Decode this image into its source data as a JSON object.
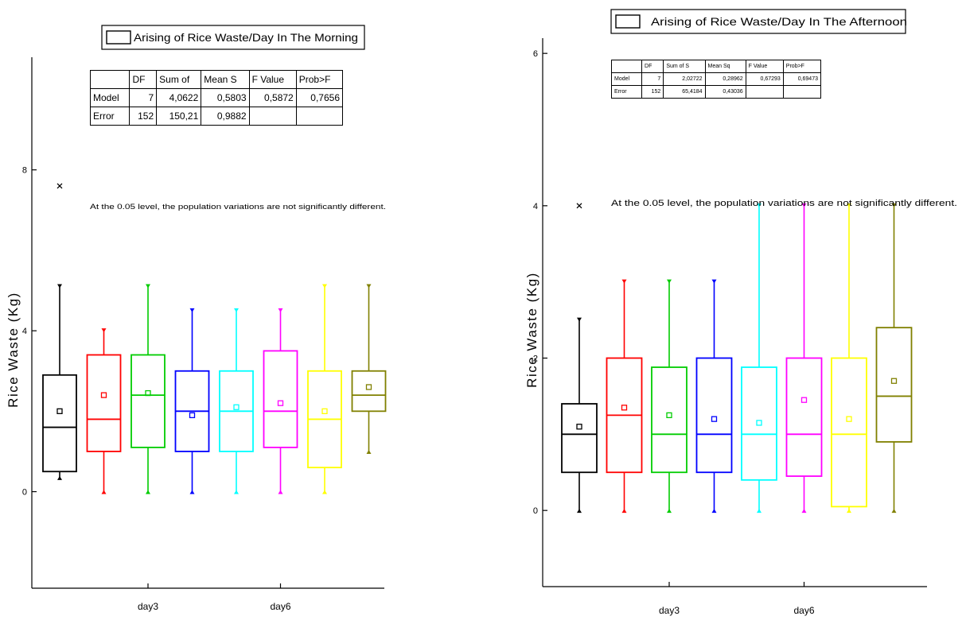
{
  "chart_data": [
    {
      "type": "box",
      "ylabel": "Rice Waste (Kg)",
      "legend": "Arising of Rice Waste/Day In The Morning",
      "note": "At the 0.05 level, the population variations are not significantly different.",
      "y_ticks": [
        0,
        4,
        8
      ],
      "ylim": [
        -2.4,
        10.8
      ],
      "categories": [
        "",
        "",
        "day3",
        "",
        "",
        "day6",
        "",
        ""
      ],
      "colors": [
        "#000000",
        "#ff0000",
        "#00cc00",
        "#0000ff",
        "#00ffff",
        "#ff00ff",
        "#ffff00",
        "#808000"
      ],
      "series": [
        {
          "min": 0.35,
          "q1": 0.5,
          "median": 1.6,
          "q3": 2.9,
          "max": 5.1,
          "mean": 2.0,
          "outliers": [
            7.6
          ]
        },
        {
          "min": 0.0,
          "q1": 1.0,
          "median": 1.8,
          "q3": 3.4,
          "max": 4.0,
          "mean": 2.4,
          "outliers": []
        },
        {
          "min": 0.0,
          "q1": 1.1,
          "median": 2.4,
          "q3": 3.4,
          "max": 5.1,
          "mean": 2.45,
          "outliers": []
        },
        {
          "min": 0.0,
          "q1": 1.0,
          "median": 2.0,
          "q3": 3.0,
          "max": 4.5,
          "mean": 1.9,
          "outliers": []
        },
        {
          "min": 0.0,
          "q1": 1.0,
          "median": 2.0,
          "q3": 3.0,
          "max": 4.5,
          "mean": 2.1,
          "outliers": []
        },
        {
          "min": 0.0,
          "q1": 1.1,
          "median": 2.0,
          "q3": 3.5,
          "max": 4.5,
          "mean": 2.2,
          "outliers": []
        },
        {
          "min": 0.0,
          "q1": 0.6,
          "median": 1.8,
          "q3": 3.0,
          "max": 5.1,
          "mean": 2.0,
          "outliers": []
        },
        {
          "min": 1.0,
          "q1": 2.0,
          "median": 2.4,
          "q3": 3.0,
          "max": 5.1,
          "mean": 2.6,
          "outliers": []
        }
      ],
      "anova": {
        "columns": [
          "",
          "DF",
          "Sum of",
          "Mean S",
          "F Value",
          "Prob>F"
        ],
        "rows": [
          [
            "Model",
            "7",
            "4,0622",
            "0,5803",
            "0,5872",
            "0,7656"
          ],
          [
            "Error",
            "152",
            "150,21",
            "0,9882",
            "",
            ""
          ]
        ]
      }
    },
    {
      "type": "box",
      "ylabel": "Rice Waste (Kg)",
      "legend": "Arising of Rice Waste/Day In The Afternoon",
      "note": "At the 0.05 level, the population variations are not significantly different.",
      "y_ticks": [
        0,
        2,
        4,
        6
      ],
      "ylim": [
        -1.0,
        6.2
      ],
      "categories": [
        "",
        "",
        "day3",
        "",
        "",
        "day6",
        "",
        ""
      ],
      "colors": [
        "#000000",
        "#ff0000",
        "#00cc00",
        "#0000ff",
        "#00ffff",
        "#ff00ff",
        "#ffff00",
        "#808000"
      ],
      "series": [
        {
          "min": 0.0,
          "q1": 0.5,
          "median": 1.0,
          "q3": 1.4,
          "max": 2.5,
          "mean": 1.1,
          "outliers": [
            4.0
          ]
        },
        {
          "min": 0.0,
          "q1": 0.5,
          "median": 1.25,
          "q3": 2.0,
          "max": 3.0,
          "mean": 1.35,
          "outliers": []
        },
        {
          "min": 0.0,
          "q1": 0.5,
          "median": 1.0,
          "q3": 1.88,
          "max": 3.0,
          "mean": 1.25,
          "outliers": []
        },
        {
          "min": 0.0,
          "q1": 0.5,
          "median": 1.0,
          "q3": 2.0,
          "max": 3.0,
          "mean": 1.2,
          "outliers": []
        },
        {
          "min": 0.0,
          "q1": 0.4,
          "median": 1.0,
          "q3": 1.88,
          "max": 4.0,
          "mean": 1.15,
          "outliers": []
        },
        {
          "min": 0.0,
          "q1": 0.45,
          "median": 1.0,
          "q3": 2.0,
          "max": 4.0,
          "mean": 1.45,
          "outliers": []
        },
        {
          "min": 0.0,
          "q1": 0.05,
          "median": 1.0,
          "q3": 2.0,
          "max": 4.0,
          "mean": 1.2,
          "outliers": []
        },
        {
          "min": 0.0,
          "q1": 0.9,
          "median": 1.5,
          "q3": 2.4,
          "max": 4.0,
          "mean": 1.7,
          "outliers": []
        }
      ],
      "anova": {
        "columns": [
          "",
          "DF",
          "Sum of S",
          "Mean Sq",
          "F Value",
          "Prob>F"
        ],
        "rows": [
          [
            "Model",
            "7",
            "2,02722",
            "0,28962",
            "0,67293",
            "0,69473"
          ],
          [
            "Error",
            "152",
            "65,4184",
            "0,43036",
            "",
            ""
          ]
        ]
      }
    }
  ]
}
